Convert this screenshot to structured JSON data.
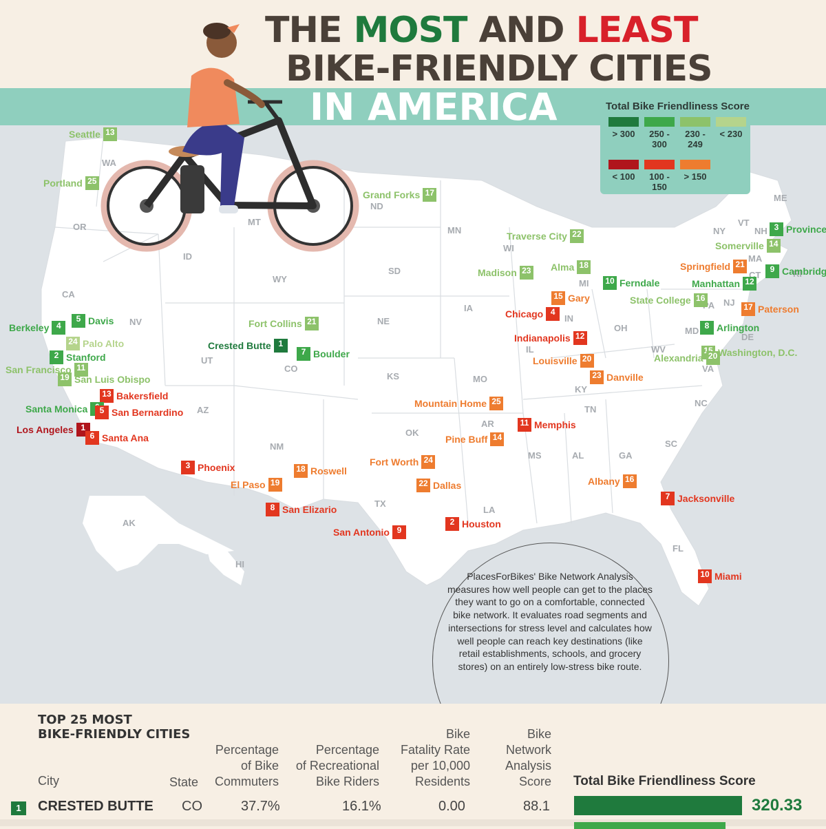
{
  "title": {
    "line1_pre": "THE ",
    "most": "MOST",
    "line1_mid": " AND ",
    "least": "LEAST",
    "line2": "BIKE-FRIENDLY CITIES",
    "line3": "IN AMERICA"
  },
  "colors": {
    "very_high": "#1f7a3d",
    "high": "#3ea84a",
    "mid": "#7fbf5e",
    "low_good": "#b5d48c",
    "very_low": "#b0151c",
    "low": "#e2361f",
    "mid_bad": "#ee7c2f",
    "brown": "#4a4038",
    "teal": "#8fcfbe"
  },
  "legend": {
    "title": "Total Bike Friendliness Score",
    "good": [
      {
        "label": "> 300",
        "color": "#1f7a3d"
      },
      {
        "label": "250 - 300",
        "color": "#3ea84a"
      },
      {
        "label": "230 - 249",
        "color": "#8dc26a"
      },
      {
        "label": "< 230",
        "color": "#b5d48c"
      }
    ],
    "bad": [
      {
        "label": "< 100",
        "color": "#b0151c"
      },
      {
        "label": "100 - 150",
        "color": "#e2361f"
      },
      {
        "label": "> 150",
        "color": "#ee7c2f"
      }
    ]
  },
  "states": [
    "WA",
    "OR",
    "CA",
    "NV",
    "ID",
    "MT",
    "WY",
    "UT",
    "CO",
    "AZ",
    "NM",
    "ND",
    "SD",
    "NE",
    "KS",
    "OK",
    "TX",
    "MN",
    "IA",
    "MO",
    "AR",
    "LA",
    "WI",
    "IL",
    "MI",
    "IN",
    "OH",
    "KY",
    "TN",
    "MS",
    "AL",
    "GA",
    "FL",
    "SC",
    "NC",
    "VA",
    "WV",
    "PA",
    "NY",
    "VT",
    "NH",
    "ME",
    "MA",
    "RI",
    "CT",
    "NJ",
    "DE",
    "MD",
    "AK",
    "HI"
  ],
  "cities": [
    {
      "name": "Seattle",
      "rank": "13",
      "color": "#8dc26a"
    },
    {
      "name": "Portland",
      "rank": "25",
      "color": "#8dc26a"
    },
    {
      "name": "Grand Forks",
      "rank": "17",
      "color": "#8dc26a"
    },
    {
      "name": "Traverse City",
      "rank": "22",
      "color": "#8dc26a"
    },
    {
      "name": "Madison",
      "rank": "23",
      "color": "#8dc26a"
    },
    {
      "name": "Alma",
      "rank": "18",
      "color": "#8dc26a"
    },
    {
      "name": "Ferndale",
      "rank": "10",
      "color": "#3ea84a"
    },
    {
      "name": "Provincetown",
      "rank": "3",
      "color": "#3ea84a"
    },
    {
      "name": "Somerville",
      "rank": "14",
      "color": "#8dc26a"
    },
    {
      "name": "Cambridge",
      "rank": "9",
      "color": "#3ea84a"
    },
    {
      "name": "Springfield",
      "rank": "21",
      "color": "#ee7c2f"
    },
    {
      "name": "Manhattan",
      "rank": "12",
      "color": "#3ea84a"
    },
    {
      "name": "State College",
      "rank": "16",
      "color": "#8dc26a"
    },
    {
      "name": "Paterson",
      "rank": "17",
      "color": "#ee7c2f"
    },
    {
      "name": "Gary",
      "rank": "15",
      "color": "#ee7c2f"
    },
    {
      "name": "Chicago",
      "rank": "4",
      "color": "#e2361f"
    },
    {
      "name": "Indianapolis",
      "rank": "12",
      "color": "#e2361f"
    },
    {
      "name": "Louisville",
      "rank": "20",
      "color": "#ee7c2f"
    },
    {
      "name": "Danville",
      "rank": "23",
      "color": "#ee7c2f"
    },
    {
      "name": "Arlington",
      "rank": "8",
      "color": "#3ea84a"
    },
    {
      "name": "Washington, D.C.",
      "rank": "15",
      "color": "#8dc26a"
    },
    {
      "name": "Alexandria",
      "rank": "20",
      "color": "#8dc26a"
    },
    {
      "name": "Davis",
      "rank": "5",
      "color": "#3ea84a"
    },
    {
      "name": "Berkeley",
      "rank": "4",
      "color": "#3ea84a"
    },
    {
      "name": "Palo Alto",
      "rank": "24",
      "color": "#b5d48c"
    },
    {
      "name": "Stanford",
      "rank": "2",
      "color": "#3ea84a"
    },
    {
      "name": "San Francisco",
      "rank": "11",
      "color": "#8dc26a"
    },
    {
      "name": "San Luis Obispo",
      "rank": "19",
      "color": "#8dc26a"
    },
    {
      "name": "Fort Collins",
      "rank": "21",
      "color": "#8dc26a"
    },
    {
      "name": "Crested Butte",
      "rank": "1",
      "color": "#1f7a3d"
    },
    {
      "name": "Boulder",
      "rank": "7",
      "color": "#3ea84a"
    },
    {
      "name": "Bakersfield",
      "rank": "13",
      "color": "#e2361f"
    },
    {
      "name": "Santa Monica",
      "rank": "6",
      "color": "#3ea84a"
    },
    {
      "name": "San Bernardino",
      "rank": "5",
      "color": "#e2361f"
    },
    {
      "name": "Los Angeles",
      "rank": "1",
      "color": "#b0151c"
    },
    {
      "name": "Santa Ana",
      "rank": "6",
      "color": "#e2361f"
    },
    {
      "name": "Mountain Home",
      "rank": "25",
      "color": "#ee7c2f"
    },
    {
      "name": "Memphis",
      "rank": "11",
      "color": "#e2361f"
    },
    {
      "name": "Pine Buff",
      "rank": "14",
      "color": "#ee7c2f"
    },
    {
      "name": "Phoenix",
      "rank": "3",
      "color": "#e2361f"
    },
    {
      "name": "Roswell",
      "rank": "18",
      "color": "#ee7c2f"
    },
    {
      "name": "El Paso",
      "rank": "19",
      "color": "#ee7c2f"
    },
    {
      "name": "San Elizario",
      "rank": "8",
      "color": "#e2361f"
    },
    {
      "name": "Fort Worth",
      "rank": "24",
      "color": "#ee7c2f"
    },
    {
      "name": "Dallas",
      "rank": "22",
      "color": "#ee7c2f"
    },
    {
      "name": "San Antonio",
      "rank": "9",
      "color": "#e2361f"
    },
    {
      "name": "Houston",
      "rank": "2",
      "color": "#e2361f"
    },
    {
      "name": "Albany",
      "rank": "16",
      "color": "#ee7c2f"
    },
    {
      "name": "Jacksonville",
      "rank": "7",
      "color": "#e2361f"
    },
    {
      "name": "Miami",
      "rank": "10",
      "color": "#e2361f"
    }
  ],
  "note": "PlacesForBikes' Bike Network Analysis measures how well people can get to the places they want to go on a comfortable, connected bike network. It evaluates road segments and intersections for stress level and calculates how well people can reach key destinations (like retail establishments, schools, and grocery stores) on an entirely low-stress bike route.",
  "table": {
    "title_line1": "TOP 25 MOST",
    "title_line2": "BIKE-FRIENDLY CITIES",
    "col_city": "City",
    "col_state": "State",
    "col_commuters": [
      "Percentage",
      "of Bike",
      "Commuters"
    ],
    "col_recreational": [
      "Percentage",
      "of Recreational",
      "Bike Riders"
    ],
    "col_fatality": [
      "Bike",
      "Fatality Rate",
      "per 10,000",
      "Residents"
    ],
    "col_network": [
      "Bike",
      "Network",
      "Analysis",
      "Score"
    ],
    "col_total": "Total Bike Friendliness Score",
    "rows": [
      {
        "rank": "1",
        "city": "CRESTED BUTTE",
        "state": "CO",
        "commuters": "37.7%",
        "recreational": "16.1%",
        "fatality": "0.00",
        "network": "88.1",
        "total": "320.33"
      }
    ]
  }
}
